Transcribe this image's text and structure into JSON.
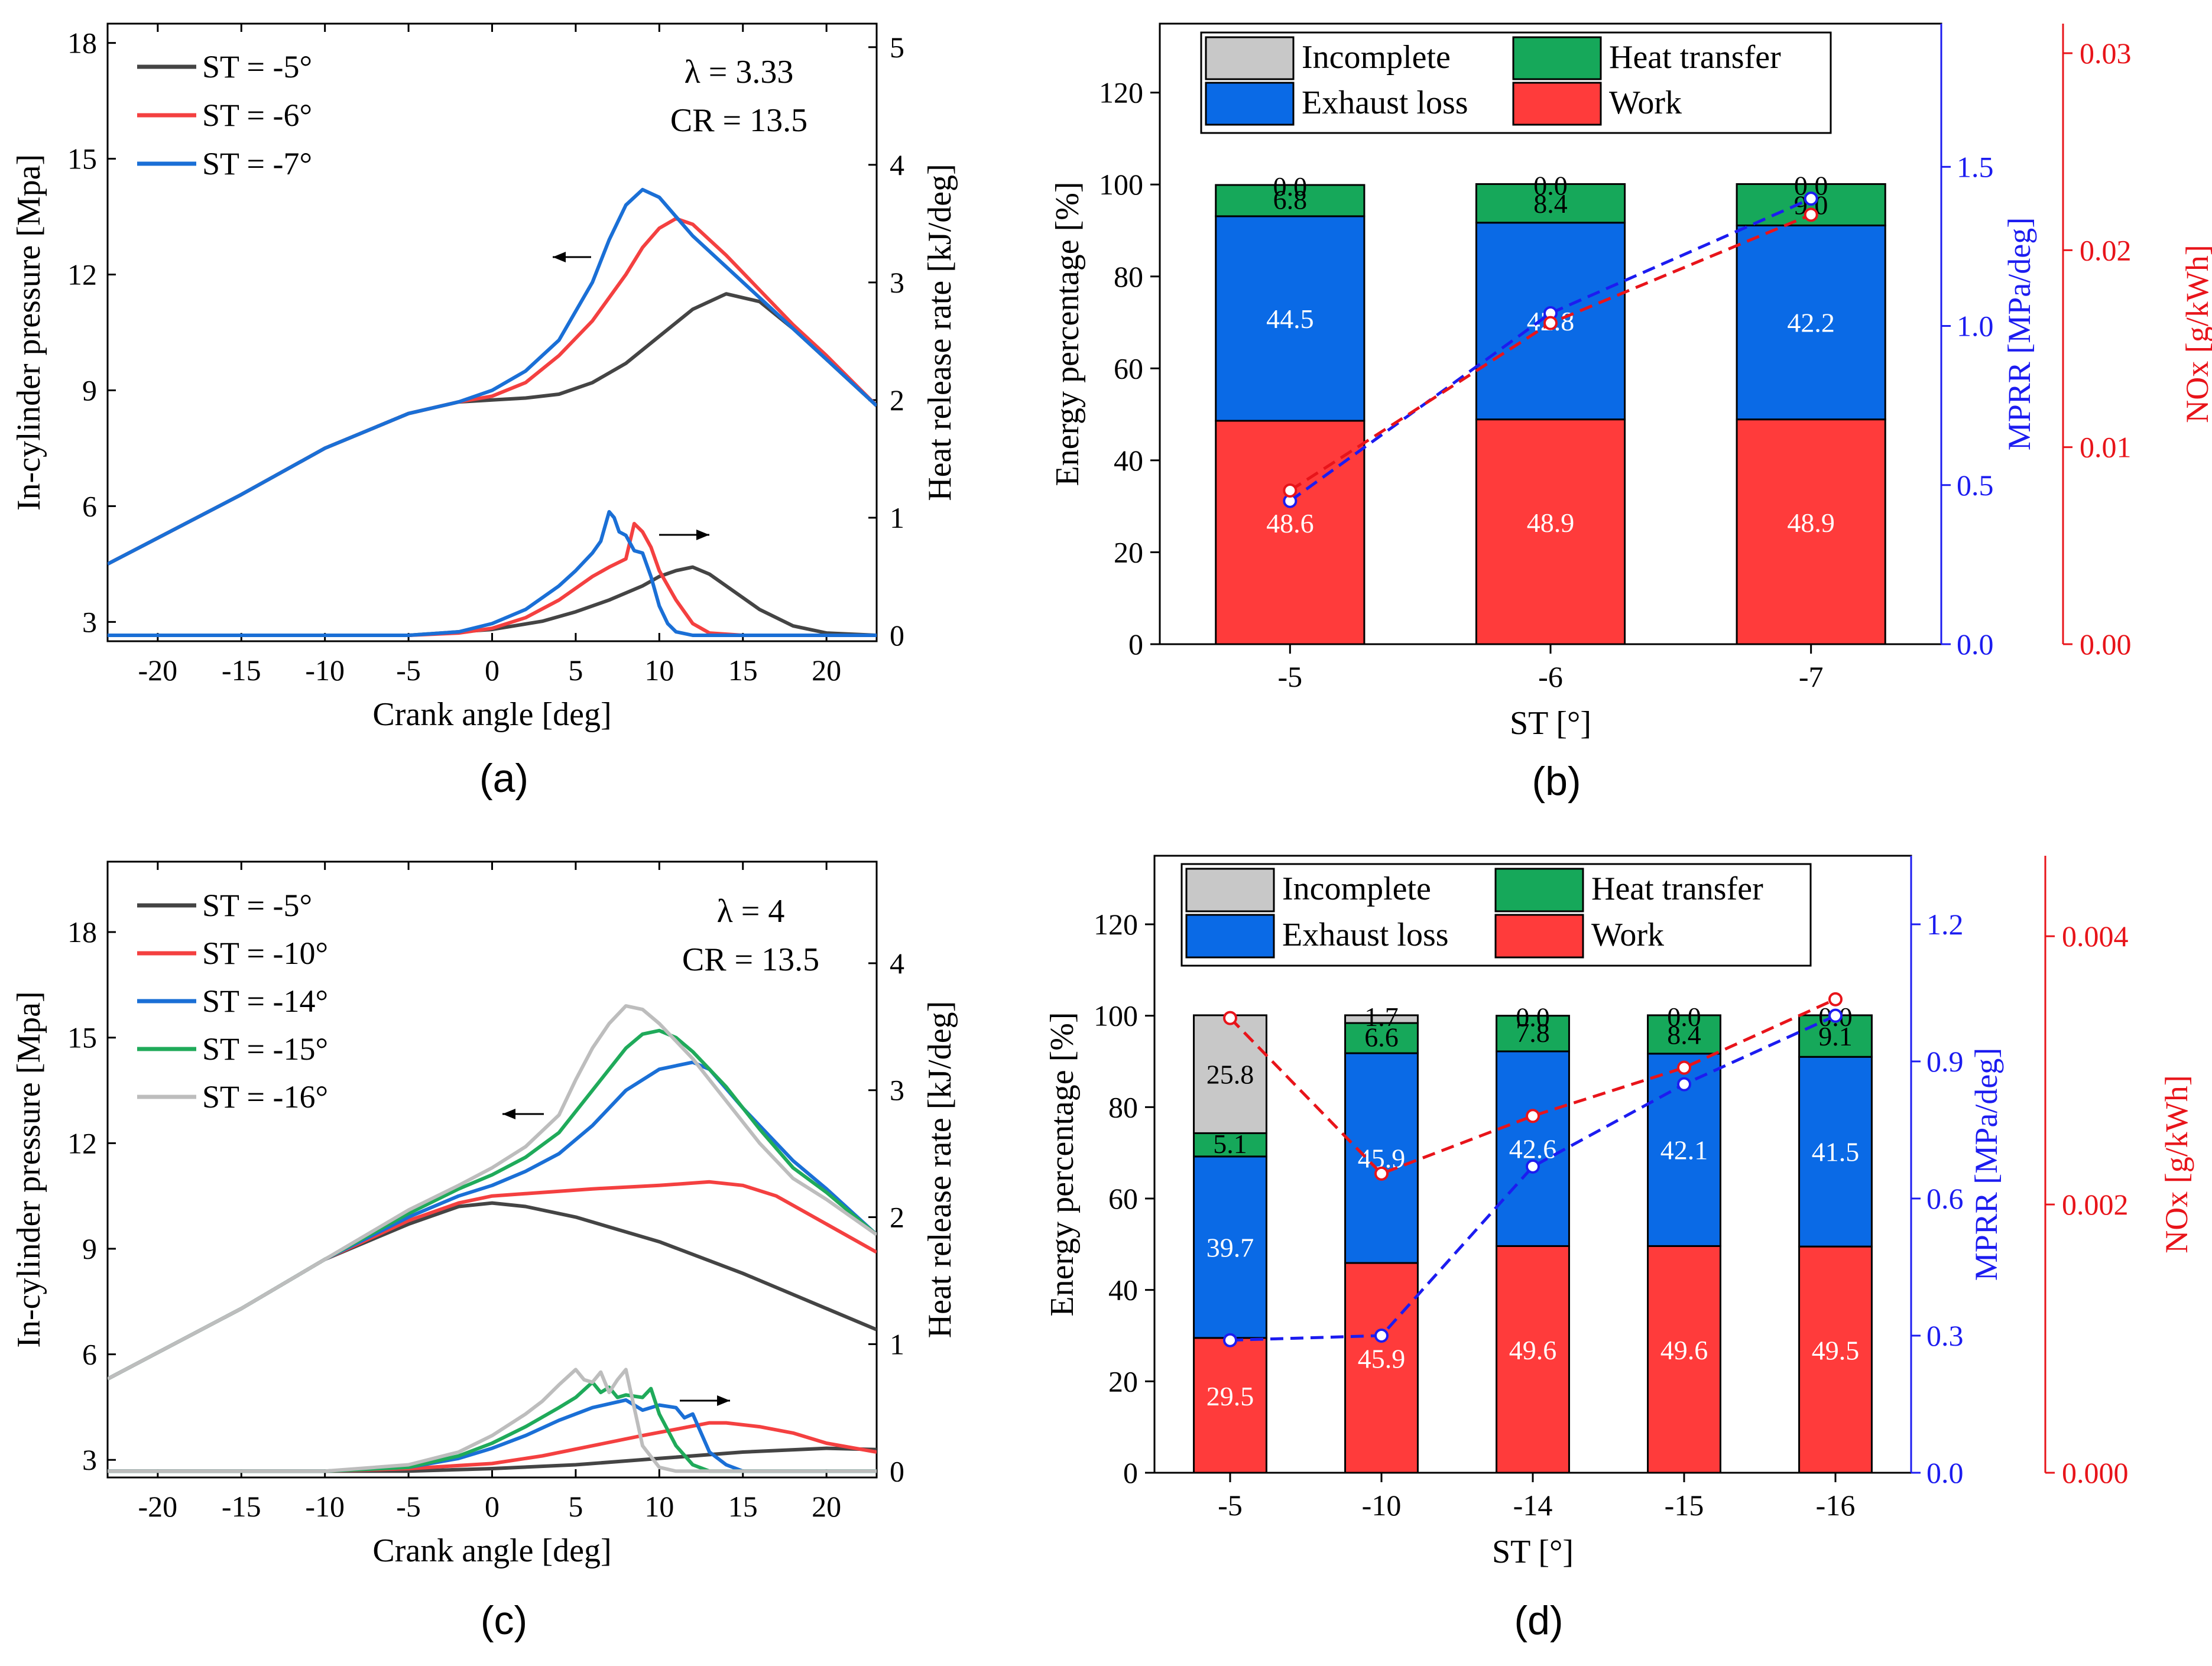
{
  "colors": {
    "dark": "#444444",
    "red": "#f44040",
    "blue": "#1a6fd6",
    "green": "#1faa5a",
    "lightgray": "#bdbdbd",
    "bar_blue": "#0a6ae6",
    "bar_red": "#ff3b3b",
    "bar_green": "#16a85a",
    "bar_gray": "#c8c8c8",
    "axis_blue": "#1c1cf0",
    "axis_red": "#e8141a"
  },
  "chart_data": [
    {
      "id": "a",
      "type": "line",
      "panel_label": "(a)",
      "xlabel": "Crank angle [deg]",
      "ylabel": "In-cylinder pressure [Mpa]",
      "y2label": "Heat release rate [kJ/deg]",
      "xlim": [
        -23,
        23
      ],
      "ylim": [
        2.5,
        18.5
      ],
      "y2lim": [
        -0.05,
        5.2
      ],
      "xticks": [
        "-20",
        "-15",
        "-10",
        "-5",
        "0",
        "5",
        "10",
        "15",
        "20"
      ],
      "yticks": [
        "3",
        "6",
        "9",
        "12",
        "15",
        "18"
      ],
      "y2ticks": [
        "0",
        "1",
        "2",
        "3",
        "4",
        "5"
      ],
      "annotations": [
        "λ = 3.33",
        "CR = 13.5"
      ],
      "legend": [
        {
          "label": "ST = -5°",
          "color": "#444444"
        },
        {
          "label": "ST = -6°",
          "color": "#f44040"
        },
        {
          "label": "ST = -7°",
          "color": "#1a6fd6"
        }
      ],
      "series": [
        {
          "name": "ST = -5° pressure",
          "axis": "left",
          "color": "#444444",
          "x": [
            -23,
            -15,
            -10,
            -5,
            -2,
            0,
            2,
            4,
            6,
            8,
            10,
            12,
            14,
            16,
            18,
            20,
            23
          ],
          "y": [
            4.5,
            6.3,
            7.5,
            8.4,
            8.7,
            8.75,
            8.8,
            8.9,
            9.2,
            9.7,
            10.4,
            11.1,
            11.5,
            11.3,
            10.6,
            9.8,
            8.6
          ]
        },
        {
          "name": "ST = -6° pressure",
          "axis": "left",
          "color": "#f44040",
          "x": [
            -23,
            -15,
            -10,
            -5,
            -2,
            0,
            2,
            4,
            6,
            8,
            9,
            10,
            11,
            12,
            14,
            16,
            18,
            20,
            23
          ],
          "y": [
            4.5,
            6.3,
            7.5,
            8.4,
            8.7,
            8.85,
            9.2,
            9.9,
            10.8,
            12.0,
            12.7,
            13.2,
            13.45,
            13.3,
            12.5,
            11.6,
            10.7,
            9.9,
            8.6
          ]
        },
        {
          "name": "ST = -7° pressure",
          "axis": "left",
          "color": "#1a6fd6",
          "x": [
            -23,
            -15,
            -10,
            -5,
            -2,
            0,
            2,
            4,
            6,
            7,
            8,
            9,
            10,
            11,
            12,
            14,
            16,
            18,
            20,
            23
          ],
          "y": [
            4.5,
            6.3,
            7.5,
            8.4,
            8.7,
            9.0,
            9.5,
            10.3,
            11.8,
            12.9,
            13.8,
            14.2,
            14.0,
            13.5,
            13.0,
            12.2,
            11.4,
            10.6,
            9.8,
            8.6
          ]
        },
        {
          "name": "ST = -5° HRR",
          "axis": "right",
          "color": "#444444",
          "x": [
            -23,
            -5,
            0,
            3,
            5,
            7,
            9,
            10,
            11,
            12,
            13,
            14,
            16,
            18,
            20,
            23
          ],
          "y": [
            0,
            0,
            0.05,
            0.12,
            0.2,
            0.3,
            0.42,
            0.5,
            0.55,
            0.58,
            0.52,
            0.42,
            0.22,
            0.08,
            0.02,
            0
          ]
        },
        {
          "name": "ST = -6° HRR",
          "axis": "right",
          "color": "#f44040",
          "x": [
            -23,
            -5,
            -2,
            0,
            2,
            4,
            5,
            6,
            7,
            8,
            8.5,
            9,
            9.5,
            10,
            11,
            12,
            13,
            15,
            23
          ],
          "y": [
            0,
            0,
            0.02,
            0.06,
            0.15,
            0.3,
            0.4,
            0.5,
            0.58,
            0.65,
            0.95,
            0.88,
            0.75,
            0.55,
            0.3,
            0.1,
            0.02,
            0,
            0
          ]
        },
        {
          "name": "ST = -7° HRR",
          "axis": "right",
          "color": "#1a6fd6",
          "x": [
            -23,
            -5,
            -2,
            0,
            2,
            3,
            4,
            5,
            6,
            6.5,
            7,
            7.3,
            7.6,
            8,
            8.5,
            9,
            9.5,
            10,
            10.5,
            11,
            12,
            23
          ],
          "y": [
            0,
            0,
            0.03,
            0.1,
            0.22,
            0.32,
            0.42,
            0.55,
            0.7,
            0.8,
            1.05,
            1.0,
            0.88,
            0.85,
            0.72,
            0.7,
            0.5,
            0.25,
            0.1,
            0.03,
            0,
            0
          ]
        }
      ]
    },
    {
      "id": "b",
      "type": "bar",
      "panel_label": "(b)",
      "xlabel": "ST [°]",
      "ylabel": "Energy percentage [%]",
      "y2label": "MPRR [MPa/deg]",
      "y3label": "NOx [g/kWh]",
      "categories": [
        "-5",
        "-6",
        "-7"
      ],
      "ylim": [
        0,
        135
      ],
      "yticks": [
        "0",
        "20",
        "40",
        "60",
        "80",
        "100",
        "120"
      ],
      "y2lim": [
        0,
        1.95
      ],
      "y2ticks": [
        "0.0",
        "0.5",
        "1.0",
        "1.5"
      ],
      "y3lim": [
        0,
        0.0315
      ],
      "y3ticks": [
        "0.00",
        "0.01",
        "0.02",
        "0.03"
      ],
      "legend": [
        {
          "label": "Incomplete",
          "color": "#c8c8c8"
        },
        {
          "label": "Heat transfer",
          "color": "#16a85a"
        },
        {
          "label": "Exhaust loss",
          "color": "#0a6ae6"
        },
        {
          "label": "Work",
          "color": "#ff3b3b"
        }
      ],
      "stacks": {
        "Work": [
          48.6,
          48.9,
          48.9
        ],
        "Exhaust loss": [
          44.5,
          42.8,
          42.2
        ],
        "Heat transfer": [
          6.8,
          8.4,
          9.0
        ],
        "Incomplete": [
          0.0,
          0.0,
          0.0
        ]
      },
      "labels": {
        "Work": [
          "48.6",
          "48.9",
          "48.9"
        ],
        "Exhaust loss": [
          "44.5",
          "42.8",
          "42.2"
        ],
        "Heat transfer": [
          "6.8",
          "8.4",
          "9.0"
        ],
        "Incomplete": [
          "0.0",
          "0.0",
          "0.0"
        ]
      },
      "mprr": [
        0.45,
        1.04,
        1.4
      ],
      "nox": [
        0.0078,
        0.0163,
        0.0218
      ]
    },
    {
      "id": "c",
      "type": "line",
      "panel_label": "(c)",
      "xlabel": "Crank angle [deg]",
      "ylabel": "In-cylinder pressure [Mpa]",
      "y2label": "Heat release rate [kJ/deg]",
      "xlim": [
        -23,
        23
      ],
      "ylim": [
        2.5,
        20.0
      ],
      "y2lim": [
        -0.05,
        4.8
      ],
      "xticks": [
        "-20",
        "-15",
        "-10",
        "-5",
        "0",
        "5",
        "10",
        "15",
        "20"
      ],
      "yticks": [
        "3",
        "6",
        "9",
        "12",
        "15",
        "18"
      ],
      "y2ticks": [
        "0",
        "1",
        "2",
        "3",
        "4"
      ],
      "annotations": [
        "λ = 4",
        "CR = 13.5"
      ],
      "legend": [
        {
          "label": "ST = -5°",
          "color": "#444444"
        },
        {
          "label": "ST = -10°",
          "color": "#f44040"
        },
        {
          "label": "ST = -14°",
          "color": "#1a6fd6"
        },
        {
          "label": "ST = -15°",
          "color": "#1faa5a"
        },
        {
          "label": "ST = -16°",
          "color": "#bdbdbd"
        }
      ],
      "series": [
        {
          "name": "ST = -5° pressure",
          "axis": "left",
          "color": "#444444",
          "x": [
            -23,
            -15,
            -10,
            -5,
            -2,
            0,
            2,
            5,
            10,
            15,
            20,
            23
          ],
          "y": [
            5.3,
            7.3,
            8.7,
            9.7,
            10.2,
            10.3,
            10.2,
            9.9,
            9.2,
            8.3,
            7.3,
            6.7
          ]
        },
        {
          "name": "ST = -10° pressure",
          "axis": "left",
          "color": "#f44040",
          "x": [
            -23,
            -15,
            -10,
            -5,
            -2,
            0,
            3,
            6,
            10,
            13,
            15,
            17,
            20,
            23
          ],
          "y": [
            5.3,
            7.3,
            8.7,
            9.8,
            10.3,
            10.5,
            10.6,
            10.7,
            10.8,
            10.9,
            10.8,
            10.5,
            9.7,
            8.9
          ]
        },
        {
          "name": "ST = -14° pressure",
          "axis": "left",
          "color": "#1a6fd6",
          "x": [
            -23,
            -15,
            -10,
            -5,
            -2,
            0,
            2,
            4,
            6,
            8,
            10,
            12,
            13,
            15,
            18,
            20,
            23
          ],
          "y": [
            5.3,
            7.3,
            8.7,
            9.9,
            10.5,
            10.8,
            11.2,
            11.7,
            12.5,
            13.5,
            14.1,
            14.3,
            14.1,
            13.0,
            11.5,
            10.7,
            9.4
          ]
        },
        {
          "name": "ST = -15° pressure",
          "axis": "left",
          "color": "#1faa5a",
          "x": [
            -23,
            -15,
            -10,
            -5,
            -2,
            0,
            2,
            4,
            6,
            8,
            9,
            10,
            11,
            12,
            14,
            16,
            18,
            20,
            23
          ],
          "y": [
            5.3,
            7.3,
            8.7,
            10.0,
            10.7,
            11.1,
            11.6,
            12.3,
            13.5,
            14.7,
            15.1,
            15.2,
            15.0,
            14.6,
            13.6,
            12.4,
            11.3,
            10.6,
            9.4
          ]
        },
        {
          "name": "ST = -16° pressure",
          "axis": "left",
          "color": "#bdbdbd",
          "x": [
            -23,
            -15,
            -10,
            -5,
            -2,
            0,
            2,
            4,
            5,
            6,
            7,
            8,
            9,
            10,
            12,
            14,
            16,
            18,
            20,
            23
          ],
          "y": [
            5.3,
            7.3,
            8.7,
            10.1,
            10.8,
            11.3,
            11.9,
            12.8,
            13.8,
            14.7,
            15.4,
            15.9,
            15.8,
            15.4,
            14.4,
            13.2,
            12.0,
            11.0,
            10.4,
            9.4
          ]
        },
        {
          "name": "ST = -5° HRR",
          "axis": "right",
          "color": "#444444",
          "x": [
            -23,
            -5,
            0,
            5,
            10,
            15,
            20,
            23
          ],
          "y": [
            0,
            0,
            0.02,
            0.05,
            0.1,
            0.15,
            0.18,
            0.17
          ]
        },
        {
          "name": "ST = -10° HRR",
          "axis": "right",
          "color": "#f44040",
          "x": [
            -23,
            -10,
            -5,
            0,
            3,
            6,
            9,
            11,
            13,
            14,
            16,
            18,
            20,
            23
          ],
          "y": [
            0,
            0,
            0.02,
            0.06,
            0.12,
            0.2,
            0.28,
            0.33,
            0.38,
            0.38,
            0.35,
            0.3,
            0.22,
            0.15
          ]
        },
        {
          "name": "ST = -14° HRR",
          "axis": "right",
          "color": "#1a6fd6",
          "x": [
            -23,
            -10,
            -5,
            -2,
            0,
            2,
            4,
            6,
            8,
            9,
            10,
            11,
            11.5,
            12,
            13,
            14,
            15,
            23
          ],
          "y": [
            0,
            0,
            0.03,
            0.1,
            0.18,
            0.28,
            0.4,
            0.5,
            0.56,
            0.48,
            0.52,
            0.5,
            0.42,
            0.45,
            0.15,
            0.05,
            0,
            0
          ]
        },
        {
          "name": "ST = -15° HRR",
          "axis": "right",
          "color": "#1faa5a",
          "x": [
            -23,
            -10,
            -5,
            -2,
            0,
            2,
            4,
            5,
            6,
            6.5,
            7,
            7.5,
            8,
            9,
            9.5,
            10,
            11,
            12,
            13,
            23
          ],
          "y": [
            0,
            0,
            0.03,
            0.12,
            0.22,
            0.35,
            0.5,
            0.58,
            0.7,
            0.62,
            0.66,
            0.58,
            0.6,
            0.58,
            0.65,
            0.45,
            0.2,
            0.05,
            0,
            0
          ]
        },
        {
          "name": "ST = -16° HRR",
          "axis": "right",
          "color": "#bdbdbd",
          "x": [
            -23,
            -10,
            -5,
            -2,
            0,
            2,
            3,
            4,
            5,
            5.5,
            6,
            6.5,
            7,
            7.5,
            8,
            8.5,
            9,
            10,
            11,
            23
          ],
          "y": [
            0,
            0,
            0.05,
            0.15,
            0.28,
            0.45,
            0.55,
            0.68,
            0.8,
            0.72,
            0.7,
            0.78,
            0.62,
            0.72,
            0.8,
            0.5,
            0.2,
            0.03,
            0,
            0
          ]
        }
      ]
    },
    {
      "id": "d",
      "type": "bar",
      "panel_label": "(d)",
      "xlabel": "ST [°]",
      "ylabel": "Energy percentage [%]",
      "y2label": "MPRR [MPa/deg]",
      "y3label": "NOx [g/kWh]",
      "categories": [
        "-5",
        "-10",
        "-14",
        "-15",
        "-16"
      ],
      "ylim": [
        0,
        135
      ],
      "yticks": [
        "0",
        "20",
        "40",
        "60",
        "80",
        "100",
        "120"
      ],
      "y2lim": [
        0,
        1.35
      ],
      "y2ticks": [
        "0.0",
        "0.3",
        "0.6",
        "0.9",
        "1.2"
      ],
      "y3lim": [
        0,
        0.0046
      ],
      "y3ticks": [
        "0.000",
        "0.002",
        "0.004"
      ],
      "legend": [
        {
          "label": "Incomplete",
          "color": "#c8c8c8"
        },
        {
          "label": "Heat transfer",
          "color": "#16a85a"
        },
        {
          "label": "Exhaust loss",
          "color": "#0a6ae6"
        },
        {
          "label": "Work",
          "color": "#ff3b3b"
        }
      ],
      "stacks": {
        "Work": [
          29.5,
          45.9,
          49.6,
          49.6,
          49.5
        ],
        "Exhaust loss": [
          39.7,
          45.9,
          42.6,
          42.1,
          41.5
        ],
        "Heat transfer": [
          5.1,
          6.6,
          7.8,
          8.4,
          9.1
        ],
        "Incomplete": [
          25.8,
          1.7,
          0.0,
          0.0,
          0.0
        ]
      },
      "labels": {
        "Work": [
          "29.5",
          "45.9",
          "49.6",
          "49.6",
          "49.5"
        ],
        "Exhaust loss": [
          "39.7",
          "45.9",
          "42.6",
          "42.1",
          "41.5"
        ],
        "Heat transfer": [
          "5.1",
          "6.6",
          "7.8",
          "8.4",
          "9.1"
        ],
        "Incomplete": [
          "25.8",
          "1.7",
          "0.0",
          "0.0",
          "0.0"
        ]
      },
      "mprr": [
        0.29,
        0.3,
        0.67,
        0.85,
        1.0
      ],
      "nox": [
        0.00339,
        0.00223,
        0.00266,
        0.00302,
        0.00353
      ]
    }
  ]
}
